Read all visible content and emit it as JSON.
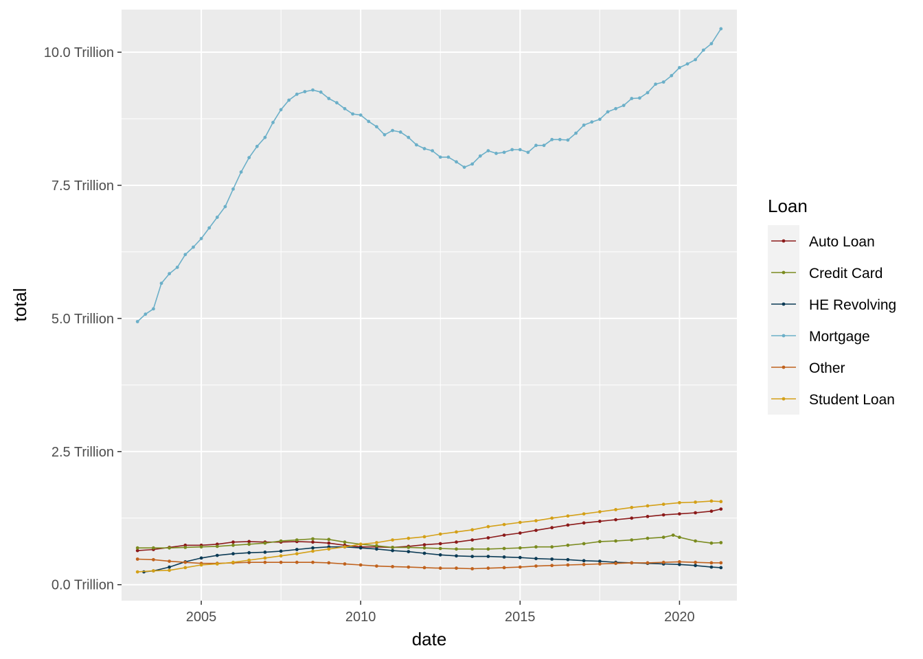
{
  "chart_data": {
    "type": "line",
    "title": "",
    "xlabel": "date",
    "ylabel": "total",
    "x_unit": "year",
    "xlim": [
      2002.5,
      2021.8
    ],
    "ylim": [
      -0.3,
      10.8
    ],
    "x_ticks": [
      2005,
      2010,
      2015,
      2020
    ],
    "x_tick_labels": [
      "2005",
      "2010",
      "2015",
      "2020"
    ],
    "y_ticks": [
      0,
      2.5,
      5,
      7.5,
      10
    ],
    "y_tick_labels": [
      "0.0 Trillion",
      "2.5 Trillion",
      "5.0 Trillion",
      "7.5 Trillion",
      "10.0 Trillion"
    ],
    "grid": true,
    "panel_background": "#EBEBEB",
    "legend": {
      "title": "Loan",
      "position": "right"
    },
    "series": [
      {
        "name": "Auto Loan",
        "color": "#8B1A1A",
        "points": [
          [
            2003.0,
            0.64
          ],
          [
            2003.5,
            0.66
          ],
          [
            2004.0,
            0.7
          ],
          [
            2004.5,
            0.74
          ],
          [
            2005.0,
            0.74
          ],
          [
            2005.5,
            0.76
          ],
          [
            2006.0,
            0.8
          ],
          [
            2006.5,
            0.81
          ],
          [
            2007.0,
            0.8
          ],
          [
            2007.5,
            0.8
          ],
          [
            2008.0,
            0.81
          ],
          [
            2008.5,
            0.8
          ],
          [
            2009.0,
            0.78
          ],
          [
            2009.5,
            0.74
          ],
          [
            2010.0,
            0.71
          ],
          [
            2010.5,
            0.71
          ],
          [
            2011.0,
            0.7
          ],
          [
            2011.5,
            0.72
          ],
          [
            2012.0,
            0.75
          ],
          [
            2012.5,
            0.77
          ],
          [
            2013.0,
            0.8
          ],
          [
            2013.5,
            0.84
          ],
          [
            2014.0,
            0.88
          ],
          [
            2014.5,
            0.93
          ],
          [
            2015.0,
            0.97
          ],
          [
            2015.5,
            1.02
          ],
          [
            2016.0,
            1.07
          ],
          [
            2016.5,
            1.12
          ],
          [
            2017.0,
            1.16
          ],
          [
            2017.5,
            1.19
          ],
          [
            2018.0,
            1.22
          ],
          [
            2018.5,
            1.25
          ],
          [
            2019.0,
            1.28
          ],
          [
            2019.5,
            1.31
          ],
          [
            2020.0,
            1.33
          ],
          [
            2020.5,
            1.35
          ],
          [
            2021.0,
            1.38
          ],
          [
            2021.3,
            1.42
          ]
        ]
      },
      {
        "name": "Credit Card",
        "color": "#7A8B1F",
        "points": [
          [
            2003.0,
            0.69
          ],
          [
            2003.5,
            0.69
          ],
          [
            2004.0,
            0.69
          ],
          [
            2004.5,
            0.7
          ],
          [
            2005.0,
            0.71
          ],
          [
            2005.5,
            0.72
          ],
          [
            2006.0,
            0.74
          ],
          [
            2006.5,
            0.76
          ],
          [
            2007.0,
            0.78
          ],
          [
            2007.5,
            0.82
          ],
          [
            2008.0,
            0.84
          ],
          [
            2008.5,
            0.86
          ],
          [
            2009.0,
            0.85
          ],
          [
            2009.5,
            0.8
          ],
          [
            2010.0,
            0.76
          ],
          [
            2010.5,
            0.73
          ],
          [
            2011.0,
            0.7
          ],
          [
            2011.5,
            0.7
          ],
          [
            2012.0,
            0.69
          ],
          [
            2012.5,
            0.68
          ],
          [
            2013.0,
            0.67
          ],
          [
            2013.5,
            0.67
          ],
          [
            2014.0,
            0.67
          ],
          [
            2014.5,
            0.68
          ],
          [
            2015.0,
            0.69
          ],
          [
            2015.5,
            0.71
          ],
          [
            2016.0,
            0.71
          ],
          [
            2016.5,
            0.74
          ],
          [
            2017.0,
            0.77
          ],
          [
            2017.5,
            0.81
          ],
          [
            2018.0,
            0.82
          ],
          [
            2018.5,
            0.84
          ],
          [
            2019.0,
            0.87
          ],
          [
            2019.5,
            0.89
          ],
          [
            2019.8,
            0.93
          ],
          [
            2020.0,
            0.89
          ],
          [
            2020.5,
            0.82
          ],
          [
            2021.0,
            0.78
          ],
          [
            2021.3,
            0.79
          ]
        ]
      },
      {
        "name": "HE Revolving",
        "color": "#0B3A55",
        "points": [
          [
            2003.2,
            0.24
          ],
          [
            2003.5,
            0.26
          ],
          [
            2004.0,
            0.33
          ],
          [
            2004.5,
            0.43
          ],
          [
            2005.0,
            0.5
          ],
          [
            2005.5,
            0.55
          ],
          [
            2006.0,
            0.58
          ],
          [
            2006.5,
            0.6
          ],
          [
            2007.0,
            0.61
          ],
          [
            2007.5,
            0.63
          ],
          [
            2008.0,
            0.66
          ],
          [
            2008.5,
            0.69
          ],
          [
            2009.0,
            0.71
          ],
          [
            2009.5,
            0.71
          ],
          [
            2010.0,
            0.69
          ],
          [
            2010.5,
            0.67
          ],
          [
            2011.0,
            0.64
          ],
          [
            2011.5,
            0.62
          ],
          [
            2012.0,
            0.59
          ],
          [
            2012.5,
            0.56
          ],
          [
            2013.0,
            0.54
          ],
          [
            2013.5,
            0.53
          ],
          [
            2014.0,
            0.53
          ],
          [
            2014.5,
            0.52
          ],
          [
            2015.0,
            0.51
          ],
          [
            2015.5,
            0.49
          ],
          [
            2016.0,
            0.48
          ],
          [
            2016.5,
            0.47
          ],
          [
            2017.0,
            0.45
          ],
          [
            2017.5,
            0.44
          ],
          [
            2018.0,
            0.42
          ],
          [
            2018.5,
            0.41
          ],
          [
            2019.0,
            0.4
          ],
          [
            2019.5,
            0.39
          ],
          [
            2020.0,
            0.38
          ],
          [
            2020.5,
            0.36
          ],
          [
            2021.0,
            0.33
          ],
          [
            2021.3,
            0.32
          ]
        ]
      },
      {
        "name": "Mortgage",
        "color": "#6BAFC8",
        "points": [
          [
            2003.0,
            4.94
          ],
          [
            2003.25,
            5.08
          ],
          [
            2003.5,
            5.18
          ],
          [
            2003.75,
            5.66
          ],
          [
            2004.0,
            5.84
          ],
          [
            2004.25,
            5.96
          ],
          [
            2004.5,
            6.2
          ],
          [
            2004.75,
            6.34
          ],
          [
            2005.0,
            6.5
          ],
          [
            2005.25,
            6.7
          ],
          [
            2005.5,
            6.9
          ],
          [
            2005.75,
            7.1
          ],
          [
            2006.0,
            7.43
          ],
          [
            2006.25,
            7.75
          ],
          [
            2006.5,
            8.02
          ],
          [
            2006.75,
            8.23
          ],
          [
            2007.0,
            8.4
          ],
          [
            2007.25,
            8.68
          ],
          [
            2007.5,
            8.92
          ],
          [
            2007.75,
            9.1
          ],
          [
            2008.0,
            9.21
          ],
          [
            2008.25,
            9.26
          ],
          [
            2008.5,
            9.29
          ],
          [
            2008.75,
            9.25
          ],
          [
            2009.0,
            9.13
          ],
          [
            2009.25,
            9.05
          ],
          [
            2009.5,
            8.94
          ],
          [
            2009.75,
            8.84
          ],
          [
            2010.0,
            8.82
          ],
          [
            2010.25,
            8.7
          ],
          [
            2010.5,
            8.6
          ],
          [
            2010.75,
            8.45
          ],
          [
            2011.0,
            8.53
          ],
          [
            2011.25,
            8.5
          ],
          [
            2011.5,
            8.4
          ],
          [
            2011.75,
            8.26
          ],
          [
            2012.0,
            8.19
          ],
          [
            2012.25,
            8.15
          ],
          [
            2012.5,
            8.03
          ],
          [
            2012.75,
            8.03
          ],
          [
            2013.0,
            7.94
          ],
          [
            2013.25,
            7.84
          ],
          [
            2013.5,
            7.9
          ],
          [
            2013.75,
            8.05
          ],
          [
            2014.0,
            8.15
          ],
          [
            2014.25,
            8.1
          ],
          [
            2014.5,
            8.12
          ],
          [
            2014.75,
            8.17
          ],
          [
            2015.0,
            8.17
          ],
          [
            2015.25,
            8.12
          ],
          [
            2015.5,
            8.25
          ],
          [
            2015.75,
            8.25
          ],
          [
            2016.0,
            8.36
          ],
          [
            2016.25,
            8.36
          ],
          [
            2016.5,
            8.35
          ],
          [
            2016.75,
            8.48
          ],
          [
            2017.0,
            8.63
          ],
          [
            2017.25,
            8.69
          ],
          [
            2017.5,
            8.74
          ],
          [
            2017.75,
            8.88
          ],
          [
            2018.0,
            8.94
          ],
          [
            2018.25,
            9.0
          ],
          [
            2018.5,
            9.13
          ],
          [
            2018.75,
            9.14
          ],
          [
            2019.0,
            9.24
          ],
          [
            2019.25,
            9.4
          ],
          [
            2019.5,
            9.44
          ],
          [
            2019.75,
            9.56
          ],
          [
            2020.0,
            9.71
          ],
          [
            2020.25,
            9.78
          ],
          [
            2020.5,
            9.86
          ],
          [
            2020.75,
            10.04
          ],
          [
            2021.0,
            10.16
          ],
          [
            2021.3,
            10.44
          ]
        ]
      },
      {
        "name": "Other",
        "color": "#C0621D",
        "points": [
          [
            2003.0,
            0.48
          ],
          [
            2003.5,
            0.47
          ],
          [
            2004.0,
            0.44
          ],
          [
            2004.5,
            0.42
          ],
          [
            2005.0,
            0.4
          ],
          [
            2005.5,
            0.4
          ],
          [
            2006.0,
            0.41
          ],
          [
            2006.5,
            0.42
          ],
          [
            2007.0,
            0.42
          ],
          [
            2007.5,
            0.42
          ],
          [
            2008.0,
            0.42
          ],
          [
            2008.5,
            0.42
          ],
          [
            2009.0,
            0.41
          ],
          [
            2009.5,
            0.39
          ],
          [
            2010.0,
            0.37
          ],
          [
            2010.5,
            0.35
          ],
          [
            2011.0,
            0.34
          ],
          [
            2011.5,
            0.33
          ],
          [
            2012.0,
            0.32
          ],
          [
            2012.5,
            0.31
          ],
          [
            2013.0,
            0.31
          ],
          [
            2013.5,
            0.3
          ],
          [
            2014.0,
            0.31
          ],
          [
            2014.5,
            0.32
          ],
          [
            2015.0,
            0.33
          ],
          [
            2015.5,
            0.35
          ],
          [
            2016.0,
            0.36
          ],
          [
            2016.5,
            0.37
          ],
          [
            2017.0,
            0.38
          ],
          [
            2017.5,
            0.39
          ],
          [
            2018.0,
            0.4
          ],
          [
            2018.5,
            0.41
          ],
          [
            2019.0,
            0.41
          ],
          [
            2019.5,
            0.42
          ],
          [
            2020.0,
            0.43
          ],
          [
            2020.5,
            0.42
          ],
          [
            2021.0,
            0.41
          ],
          [
            2021.3,
            0.41
          ]
        ]
      },
      {
        "name": "Student Loan",
        "color": "#D4A017",
        "points": [
          [
            2003.0,
            0.24
          ],
          [
            2003.5,
            0.26
          ],
          [
            2004.0,
            0.27
          ],
          [
            2004.5,
            0.32
          ],
          [
            2005.0,
            0.37
          ],
          [
            2005.5,
            0.39
          ],
          [
            2006.0,
            0.42
          ],
          [
            2006.5,
            0.46
          ],
          [
            2007.0,
            0.5
          ],
          [
            2007.5,
            0.54
          ],
          [
            2008.0,
            0.58
          ],
          [
            2008.5,
            0.63
          ],
          [
            2009.0,
            0.67
          ],
          [
            2009.5,
            0.71
          ],
          [
            2010.0,
            0.76
          ],
          [
            2010.5,
            0.79
          ],
          [
            2011.0,
            0.84
          ],
          [
            2011.5,
            0.87
          ],
          [
            2012.0,
            0.9
          ],
          [
            2012.5,
            0.95
          ],
          [
            2013.0,
            0.99
          ],
          [
            2013.5,
            1.03
          ],
          [
            2014.0,
            1.09
          ],
          [
            2014.5,
            1.13
          ],
          [
            2015.0,
            1.17
          ],
          [
            2015.5,
            1.2
          ],
          [
            2016.0,
            1.25
          ],
          [
            2016.5,
            1.29
          ],
          [
            2017.0,
            1.33
          ],
          [
            2017.5,
            1.37
          ],
          [
            2018.0,
            1.41
          ],
          [
            2018.5,
            1.45
          ],
          [
            2019.0,
            1.48
          ],
          [
            2019.5,
            1.51
          ],
          [
            2020.0,
            1.54
          ],
          [
            2020.5,
            1.55
          ],
          [
            2021.0,
            1.57
          ],
          [
            2021.3,
            1.56
          ]
        ]
      }
    ]
  }
}
